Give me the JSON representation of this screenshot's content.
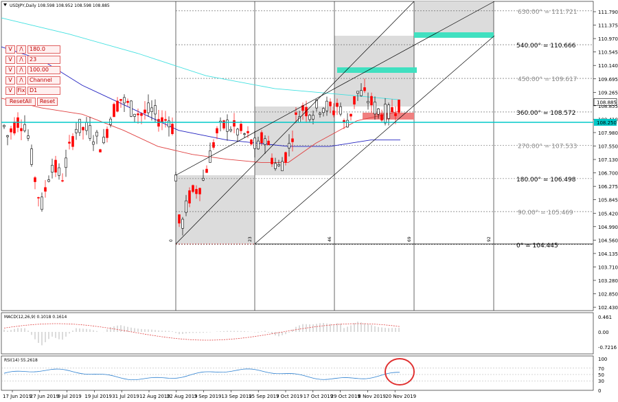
{
  "chart_data": {
    "type": "candlestick",
    "symbol_header": "USDJPY,Daily  108.598 108.952 108.598 108.885",
    "ylim": [
      102.43,
      111.93
    ],
    "price_ticks": [
      "111.790",
      "111.375",
      "110.970",
      "110.545",
      "110.140",
      "109.695",
      "109.265",
      "108.855",
      "108.410",
      "107.980",
      "107.550",
      "107.130",
      "106.700",
      "106.275",
      "105.845",
      "105.420",
      "104.990",
      "104.560",
      "104.135",
      "103.710",
      "103.280",
      "102.850",
      "102.430"
    ],
    "last_price_label": "108.885",
    "horizontal_line_label": "108.250",
    "date_labels": [
      "17 Jun 2019",
      "27 Jun 2019",
      "9 Jul 2019",
      "19 Jul 2019",
      "31 Jul 2019",
      "12 Aug 2019",
      "22 Aug 2019",
      "3 Sep 2019",
      "13 Sep 2019",
      "25 Sep 2019",
      "7 Oct 2019",
      "17 Oct 2019",
      "29 Oct 2019",
      "8 Nov 2019",
      "20 Nov 2019"
    ],
    "gann_levels": [
      {
        "label": "630.00° = 111.721",
        "price": 111.721,
        "dim": true
      },
      {
        "label": "540.00° = 110.666",
        "price": 110.666,
        "dim": false
      },
      {
        "label": "450.00° = 109.617",
        "price": 109.617,
        "dim": true
      },
      {
        "label": "360.00° = 108.572",
        "price": 108.572,
        "dim": false
      },
      {
        "label": "270.00° = 107.533",
        "price": 107.533,
        "dim": true
      },
      {
        "label": "180.00° = 106.498",
        "price": 106.498,
        "dim": false
      },
      {
        "label": "90.00° = 105.469",
        "price": 105.469,
        "dim": true
      },
      {
        "label": "0° = 104.445",
        "price": 104.445,
        "dim": false
      }
    ],
    "time_marks": [
      "0",
      "23",
      "46",
      "69",
      "92"
    ],
    "macd": {
      "header": "MACD(12,26,9) 0.1018 0.1614",
      "ticks": [
        "0.461",
        "0.00",
        "-0.7216"
      ]
    },
    "rsi": {
      "header": "RSI(14) 55.2618",
      "ticks": [
        "100",
        "70",
        "50",
        "30",
        "0"
      ]
    }
  },
  "panel": {
    "rows": [
      {
        "down": "V",
        "up": "/\\",
        "value": "180.0"
      },
      {
        "down": "V",
        "up": "/\\",
        "value": "23"
      },
      {
        "down": "V",
        "up": "/\\",
        "value": "100.00"
      },
      {
        "down": "V",
        "up": "/\\",
        "value": "Channel"
      },
      {
        "down": "V",
        "up": "Fix",
        "value": "D1"
      }
    ],
    "reset_all": "ResetAll",
    "reset": "Reset"
  },
  "colors": {
    "bull": "#000000",
    "bear": "#ff0000",
    "aqua": "#00c8c8",
    "ma_red": "#e04040",
    "ma_blue": "#2020c0",
    "ma_cyan": "#40e0e0",
    "teal_zone": "#40e0c0",
    "red_zone": "#f08080"
  }
}
